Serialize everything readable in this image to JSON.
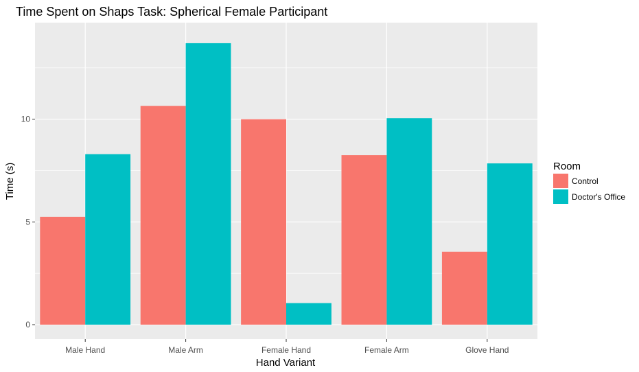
{
  "chart_data": {
    "type": "bar",
    "title": "Time Spent on Shaps Task: Spherical Female Participant",
    "xlabel": "Hand Variant",
    "ylabel": "Time (s)",
    "categories": [
      "Male Hand",
      "Male Arm",
      "Female Hand",
      "Female Arm",
      "Glove Hand"
    ],
    "series": [
      {
        "name": "Control",
        "color": "#F8766D",
        "values": [
          5.25,
          10.65,
          10.0,
          8.25,
          3.55
        ]
      },
      {
        "name": "Doctor's Office",
        "color": "#00BFC4",
        "values": [
          8.3,
          13.7,
          1.05,
          10.05,
          7.85
        ]
      }
    ],
    "ylim": [
      -0.7,
      14.7
    ],
    "yticks": [
      0,
      5,
      10
    ],
    "ytick_labels": [
      "0",
      "5",
      "10"
    ],
    "grid": true,
    "legend": {
      "title": "Room",
      "position": "right"
    },
    "panel_background": "#EBEBEB",
    "grid_color": "#FFFFFF"
  }
}
